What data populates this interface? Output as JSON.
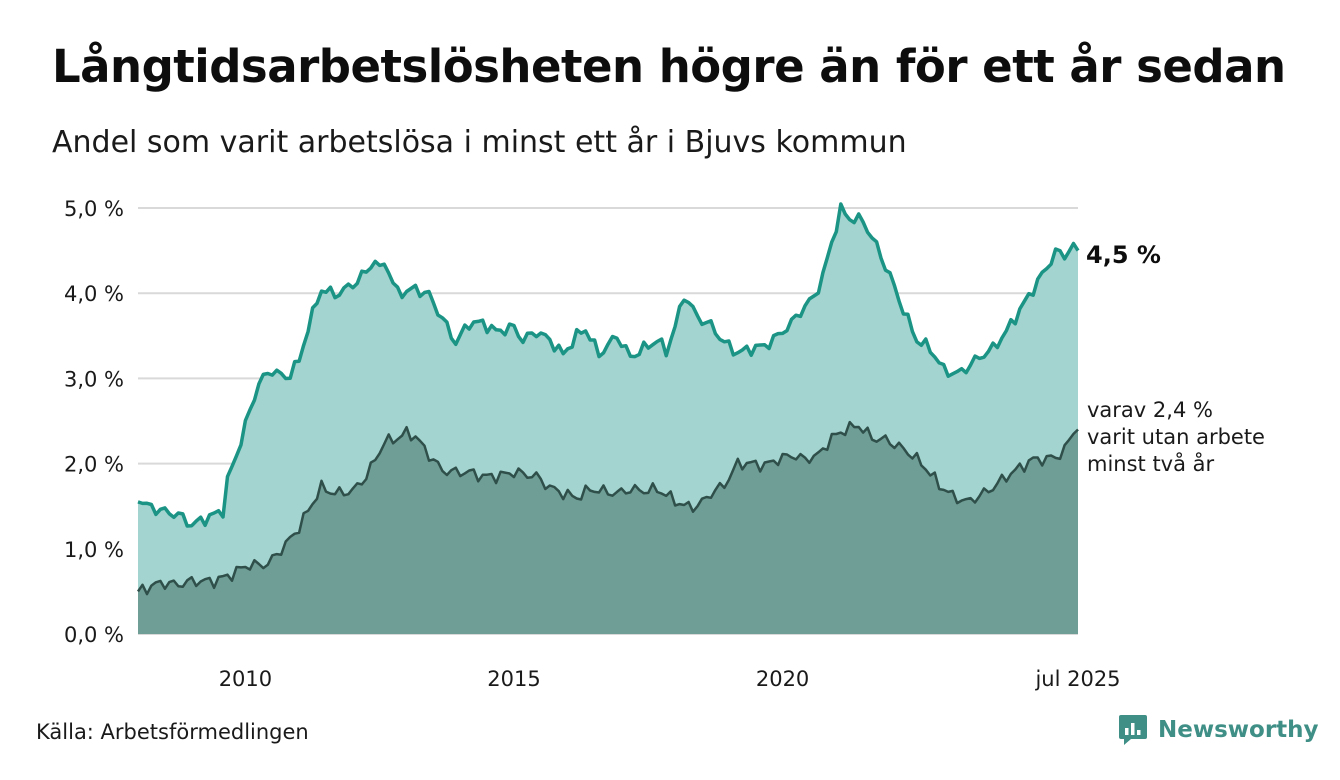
{
  "header": {
    "title": "Långtidsarbetslösheten högre än för ett år sedan",
    "subtitle": "Andel som varit arbetslösa i minst ett år i Bjuvs kommun"
  },
  "footer": {
    "source": "Källa: Arbetsförmedlingen",
    "brand": "Newsworthy"
  },
  "colors": {
    "total_fill": "#a3d4cf",
    "total_line": "#1b9485",
    "two_year_fill": "#6f9e96",
    "two_year_line": "#2f4f4a",
    "grid": "#d9d9d9",
    "brand": "#3f8f86"
  },
  "chart_data": {
    "type": "area",
    "x_start": "2008-01",
    "x_end": "2025-07",
    "x_step": "month",
    "ylim": [
      0,
      5
    ],
    "y_ticks": [
      0,
      1,
      2,
      3,
      4,
      5
    ],
    "y_tick_labels": [
      "0,0 %",
      "1,0 %",
      "2,0 %",
      "3,0 %",
      "4,0 %",
      "5,0 %"
    ],
    "x_ticks": [
      "2010-01",
      "2015-01",
      "2020-01",
      "2025-07"
    ],
    "x_tick_labels": [
      "2010",
      "2015",
      "2020",
      "jul 2025"
    ],
    "grid": "horizontal",
    "annotations": {
      "end_value_label": "4,5 %",
      "two_year_lines": [
        "varav 2,4 %",
        "varit utan arbete",
        "minst två år"
      ]
    },
    "series": [
      {
        "key": "minst_ett_ar",
        "keyframes": [
          [
            "2008-01",
            1.55
          ],
          [
            "2008-06",
            1.45
          ],
          [
            "2008-10",
            1.4
          ],
          [
            "2009-01",
            1.28
          ],
          [
            "2009-06",
            1.4
          ],
          [
            "2009-08",
            1.45
          ],
          [
            "2009-09",
            1.8
          ],
          [
            "2009-11",
            2.1
          ],
          [
            "2010-01",
            2.45
          ],
          [
            "2010-04",
            2.95
          ],
          [
            "2010-07",
            3.1
          ],
          [
            "2010-10",
            3.0
          ],
          [
            "2011-01",
            3.2
          ],
          [
            "2011-03",
            3.6
          ],
          [
            "2011-06",
            4.05
          ],
          [
            "2011-09",
            3.98
          ],
          [
            "2012-01",
            4.1
          ],
          [
            "2012-04",
            4.25
          ],
          [
            "2012-06",
            4.4
          ],
          [
            "2012-07",
            4.25
          ],
          [
            "2012-08",
            4.38
          ],
          [
            "2012-11",
            4.0
          ],
          [
            "2013-03",
            4.05
          ],
          [
            "2013-06",
            3.98
          ],
          [
            "2013-09",
            3.7
          ],
          [
            "2013-12",
            3.42
          ],
          [
            "2014-03",
            3.65
          ],
          [
            "2014-06",
            3.65
          ],
          [
            "2014-09",
            3.55
          ],
          [
            "2015-01",
            3.6
          ],
          [
            "2015-03",
            3.45
          ],
          [
            "2015-06",
            3.55
          ],
          [
            "2015-09",
            3.45
          ],
          [
            "2015-12",
            3.28
          ],
          [
            "2016-03",
            3.5
          ],
          [
            "2016-05",
            3.58
          ],
          [
            "2016-08",
            3.28
          ],
          [
            "2016-12",
            3.5
          ],
          [
            "2017-03",
            3.25
          ],
          [
            "2017-06",
            3.35
          ],
          [
            "2017-09",
            3.45
          ],
          [
            "2017-11",
            3.32
          ],
          [
            "2018-01",
            3.6
          ],
          [
            "2018-03",
            3.98
          ],
          [
            "2018-06",
            3.72
          ],
          [
            "2018-09",
            3.62
          ],
          [
            "2018-12",
            3.42
          ],
          [
            "2019-03",
            3.3
          ],
          [
            "2019-06",
            3.35
          ],
          [
            "2019-09",
            3.38
          ],
          [
            "2019-12",
            3.5
          ],
          [
            "2020-03",
            3.65
          ],
          [
            "2020-06",
            3.85
          ],
          [
            "2020-08",
            3.95
          ],
          [
            "2020-10",
            4.2
          ],
          [
            "2020-12",
            4.6
          ],
          [
            "2021-02",
            4.98
          ],
          [
            "2021-04",
            4.88
          ],
          [
            "2021-07",
            4.85
          ],
          [
            "2021-10",
            4.55
          ],
          [
            "2022-01",
            4.2
          ],
          [
            "2022-04",
            3.8
          ],
          [
            "2022-07",
            3.45
          ],
          [
            "2022-10",
            3.35
          ],
          [
            "2023-01",
            3.1
          ],
          [
            "2023-04",
            3.05
          ],
          [
            "2023-06",
            3.12
          ],
          [
            "2023-09",
            3.25
          ],
          [
            "2023-12",
            3.35
          ],
          [
            "2024-03",
            3.55
          ],
          [
            "2024-06",
            3.8
          ],
          [
            "2024-09",
            4.05
          ],
          [
            "2024-12",
            4.3
          ],
          [
            "2025-02",
            4.48
          ],
          [
            "2025-04",
            4.45
          ],
          [
            "2025-06",
            4.55
          ],
          [
            "2025-07",
            4.5
          ]
        ]
      },
      {
        "key": "minst_tva_ar",
        "keyframes": [
          [
            "2008-01",
            0.5
          ],
          [
            "2008-06",
            0.6
          ],
          [
            "2008-10",
            0.58
          ],
          [
            "2009-01",
            0.62
          ],
          [
            "2009-06",
            0.62
          ],
          [
            "2009-10",
            0.7
          ],
          [
            "2010-01",
            0.8
          ],
          [
            "2010-06",
            0.82
          ],
          [
            "2010-10",
            1.05
          ],
          [
            "2011-01",
            1.25
          ],
          [
            "2011-03",
            1.45
          ],
          [
            "2011-06",
            1.72
          ],
          [
            "2011-09",
            1.65
          ],
          [
            "2012-01",
            1.68
          ],
          [
            "2012-04",
            1.85
          ],
          [
            "2012-06",
            2.05
          ],
          [
            "2012-08",
            2.25
          ],
          [
            "2012-11",
            2.3
          ],
          [
            "2013-01",
            2.36
          ],
          [
            "2013-03",
            2.32
          ],
          [
            "2013-06",
            2.1
          ],
          [
            "2013-09",
            1.92
          ],
          [
            "2013-12",
            1.9
          ],
          [
            "2014-03",
            1.9
          ],
          [
            "2014-06",
            1.85
          ],
          [
            "2014-09",
            1.85
          ],
          [
            "2015-01",
            1.9
          ],
          [
            "2015-03",
            1.88
          ],
          [
            "2015-06",
            1.85
          ],
          [
            "2015-09",
            1.72
          ],
          [
            "2015-12",
            1.65
          ],
          [
            "2016-03",
            1.6
          ],
          [
            "2016-06",
            1.7
          ],
          [
            "2016-12",
            1.65
          ],
          [
            "2017-03",
            1.7
          ],
          [
            "2017-06",
            1.68
          ],
          [
            "2017-09",
            1.7
          ],
          [
            "2017-12",
            1.6
          ],
          [
            "2018-03",
            1.5
          ],
          [
            "2018-06",
            1.5
          ],
          [
            "2018-09",
            1.65
          ],
          [
            "2018-12",
            1.75
          ],
          [
            "2019-03",
            2.0
          ],
          [
            "2019-06",
            2.0
          ],
          [
            "2019-09",
            1.98
          ],
          [
            "2019-12",
            2.05
          ],
          [
            "2020-03",
            2.1
          ],
          [
            "2020-06",
            2.05
          ],
          [
            "2020-09",
            2.1
          ],
          [
            "2020-12",
            2.3
          ],
          [
            "2021-03",
            2.4
          ],
          [
            "2021-06",
            2.45
          ],
          [
            "2021-09",
            2.3
          ],
          [
            "2021-12",
            2.28
          ],
          [
            "2022-03",
            2.2
          ],
          [
            "2022-06",
            2.1
          ],
          [
            "2022-09",
            1.95
          ],
          [
            "2022-12",
            1.75
          ],
          [
            "2023-03",
            1.62
          ],
          [
            "2023-06",
            1.55
          ],
          [
            "2023-09",
            1.62
          ],
          [
            "2023-12",
            1.72
          ],
          [
            "2024-03",
            1.85
          ],
          [
            "2024-06",
            1.95
          ],
          [
            "2024-09",
            2.05
          ],
          [
            "2024-12",
            2.05
          ],
          [
            "2025-03",
            2.1
          ],
          [
            "2025-05",
            2.25
          ],
          [
            "2025-06",
            2.4
          ],
          [
            "2025-07",
            2.4
          ]
        ]
      }
    ]
  }
}
